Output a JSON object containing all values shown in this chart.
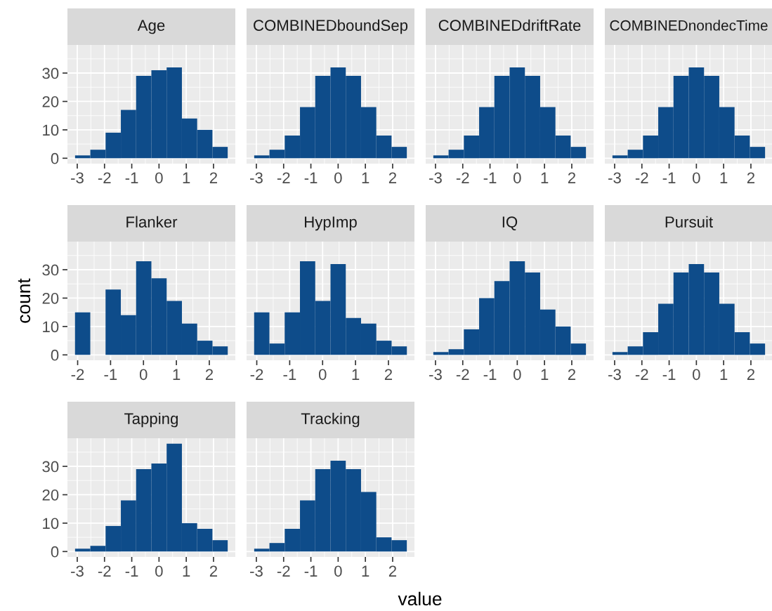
{
  "chart_data": [
    {
      "type": "histogram",
      "title": "Age",
      "bins": [
        -3.08,
        -2.52,
        -1.96,
        -1.4,
        -0.84,
        -0.28,
        0.28,
        0.84,
        1.4,
        1.96,
        2.52
      ],
      "values": [
        1,
        3,
        9,
        17,
        29,
        31,
        32,
        14,
        10,
        4
      ],
      "color": "#0e4c8a",
      "xlim": [
        -3.36,
        2.8
      ],
      "xticks": [
        -3,
        -2,
        -1,
        0,
        1,
        2
      ],
      "ylim": [
        -1.9,
        39.9
      ],
      "yticks": [
        0,
        10,
        20,
        30
      ],
      "grid": true
    },
    {
      "type": "histogram",
      "title": "COMBINEDboundSep",
      "bins": [
        -3.08,
        -2.52,
        -1.96,
        -1.4,
        -0.84,
        -0.28,
        0.28,
        0.84,
        1.4,
        1.96,
        2.52
      ],
      "values": [
        1,
        3,
        8,
        18,
        29,
        32,
        29,
        18,
        8,
        4
      ],
      "color": "#0e4c8a",
      "xlim": [
        -3.36,
        2.8
      ],
      "xticks": [
        -3,
        -2,
        -1,
        0,
        1,
        2
      ],
      "ylim": [
        -1.9,
        39.9
      ],
      "yticks": [
        0,
        10,
        20,
        30
      ],
      "grid": true,
      "tick_labels": "x"
    },
    {
      "type": "histogram",
      "title": "COMBINEDdriftRate",
      "bins": [
        -3.08,
        -2.52,
        -1.96,
        -1.4,
        -0.84,
        -0.28,
        0.28,
        0.84,
        1.4,
        1.96,
        2.52
      ],
      "values": [
        1,
        3,
        8,
        18,
        29,
        32,
        29,
        18,
        8,
        4
      ],
      "color": "#0e4c8a",
      "xlim": [
        -3.36,
        2.8
      ],
      "xticks": [
        -3,
        -2,
        -1,
        0,
        1,
        2
      ],
      "ylim": [
        -1.9,
        39.9
      ],
      "yticks": [
        0,
        10,
        20,
        30
      ],
      "grid": true,
      "tick_labels": "x"
    },
    {
      "type": "histogram",
      "title": "COMBINEDnondecTime",
      "bins": [
        -3.08,
        -2.52,
        -1.96,
        -1.4,
        -0.84,
        -0.28,
        0.28,
        0.84,
        1.4,
        1.96,
        2.52
      ],
      "values": [
        1,
        3,
        8,
        18,
        29,
        32,
        29,
        18,
        8,
        4
      ],
      "color": "#0e4c8a",
      "xlim": [
        -3.36,
        2.8
      ],
      "xticks": [
        -3,
        -2,
        -1,
        0,
        1,
        2
      ],
      "ylim": [
        -1.9,
        39.9
      ],
      "yticks": [
        0,
        10,
        20,
        30
      ],
      "grid": true,
      "tick_labels": "x"
    },
    {
      "type": "histogram",
      "title": "Flanker",
      "ylabel": "count",
      "bins": [
        -2.08,
        -1.616,
        -1.152,
        -0.688,
        -0.224,
        0.24,
        0.704,
        1.168,
        1.632,
        2.096,
        2.56
      ],
      "values": [
        15,
        0,
        23,
        14,
        33,
        27,
        19,
        11,
        5,
        3
      ],
      "color": "#0e4c8a",
      "xlim": [
        -2.31,
        2.79
      ],
      "xticks": [
        -2,
        -1,
        0,
        1,
        2
      ],
      "ylim": [
        -1.9,
        39.9
      ],
      "yticks": [
        0,
        10,
        20,
        30
      ],
      "grid": true
    },
    {
      "type": "histogram",
      "title": "HypImp",
      "bins": [
        -2.08,
        -1.616,
        -1.152,
        -0.688,
        -0.224,
        0.24,
        0.704,
        1.168,
        1.632,
        2.096,
        2.56
      ],
      "values": [
        15,
        4,
        15,
        33,
        19,
        32,
        13,
        11,
        5,
        3
      ],
      "color": "#0e4c8a",
      "xlim": [
        -2.31,
        2.79
      ],
      "xticks": [
        -2,
        -1,
        0,
        1,
        2
      ],
      "ylim": [
        -1.9,
        39.9
      ],
      "yticks": [
        0,
        10,
        20,
        30
      ],
      "grid": true,
      "tick_labels": "x"
    },
    {
      "type": "histogram",
      "title": "IQ",
      "bins": [
        -3.08,
        -2.52,
        -1.96,
        -1.4,
        -0.84,
        -0.28,
        0.28,
        0.84,
        1.4,
        1.96,
        2.52
      ],
      "values": [
        1,
        2,
        9,
        20,
        26,
        33,
        29,
        16,
        10,
        4
      ],
      "color": "#0e4c8a",
      "xlim": [
        -3.36,
        2.8
      ],
      "xticks": [
        -3,
        -2,
        -1,
        0,
        1,
        2
      ],
      "ylim": [
        -1.9,
        39.9
      ],
      "yticks": [
        0,
        10,
        20,
        30
      ],
      "grid": true,
      "tick_labels": "x"
    },
    {
      "type": "histogram",
      "title": "Pursuit",
      "bins": [
        -3.08,
        -2.52,
        -1.96,
        -1.4,
        -0.84,
        -0.28,
        0.28,
        0.84,
        1.4,
        1.96,
        2.52
      ],
      "values": [
        1,
        3,
        8,
        18,
        29,
        32,
        29,
        18,
        8,
        4
      ],
      "color": "#0e4c8a",
      "xlim": [
        -3.36,
        2.8
      ],
      "xticks": [
        -3,
        -2,
        -1,
        0,
        1,
        2
      ],
      "ylim": [
        -1.9,
        39.9
      ],
      "yticks": [
        0,
        10,
        20,
        30
      ],
      "grid": true,
      "tick_labels": "x"
    },
    {
      "type": "histogram",
      "title": "Tapping",
      "bins": [
        -3.08,
        -2.52,
        -1.96,
        -1.4,
        -0.84,
        -0.28,
        0.28,
        0.84,
        1.4,
        1.96,
        2.52
      ],
      "values": [
        1,
        2,
        9,
        18,
        29,
        31,
        38,
        10,
        8,
        4
      ],
      "color": "#0e4c8a",
      "xlim": [
        -3.36,
        2.8
      ],
      "xticks": [
        -3,
        -2,
        -1,
        0,
        1,
        2
      ],
      "ylim": [
        -1.9,
        39.9
      ],
      "yticks": [
        0,
        10,
        20,
        30
      ],
      "grid": true
    },
    {
      "type": "histogram",
      "title": "Tracking",
      "xlabel": "value",
      "bins": [
        -3.08,
        -2.52,
        -1.96,
        -1.4,
        -0.84,
        -0.28,
        0.28,
        0.84,
        1.4,
        1.96,
        2.52
      ],
      "values": [
        1,
        3,
        8,
        18,
        29,
        32,
        29,
        21,
        5,
        4
      ],
      "color": "#0e4c8a",
      "xlim": [
        -3.36,
        2.8
      ],
      "xticks": [
        -3,
        -2,
        -1,
        0,
        1,
        2
      ],
      "ylim": [
        -1.9,
        39.9
      ],
      "yticks": [
        0,
        10,
        20,
        30
      ],
      "grid": true,
      "tick_labels": "x"
    }
  ]
}
